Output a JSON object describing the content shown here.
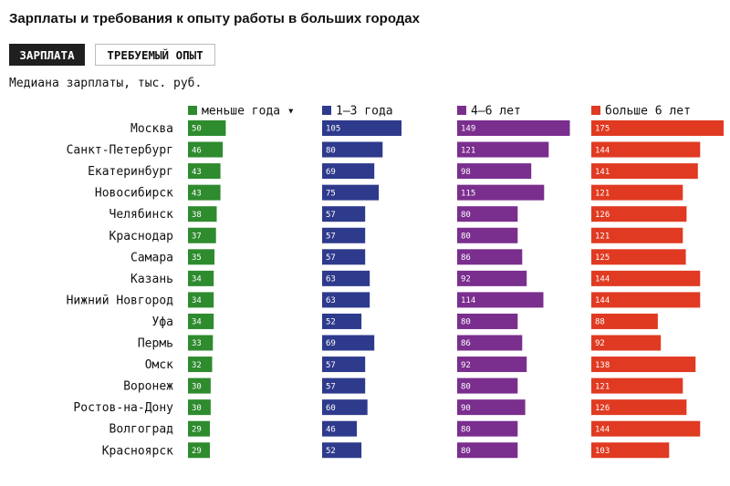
{
  "title": "Зарплаты и требования к опыту работы в больших городах",
  "tabs": [
    {
      "label": "ЗАРПЛАТА",
      "active": true
    },
    {
      "label": "ТРЕБУЕМЫЙ ОПЫТ",
      "active": false
    }
  ],
  "subtitle": "Медиана зарплаты, тыс. руб.",
  "chart_data": {
    "type": "bar",
    "orientation": "horizontal",
    "layout": "small-multiples",
    "categories": [
      "Москва",
      "Санкт-Петербург",
      "Екатеринбург",
      "Новосибирск",
      "Челябинск",
      "Краснодар",
      "Самара",
      "Казань",
      "Нижний Новгород",
      "Уфа",
      "Пермь",
      "Омск",
      "Воронеж",
      "Ростов-на-Дону",
      "Волгоград",
      "Красноярск"
    ],
    "sort_indicator": "▾",
    "series": [
      {
        "name": "меньше года",
        "color": "#2e8b2e",
        "values": [
          50,
          46,
          43,
          43,
          38,
          37,
          35,
          34,
          34,
          34,
          33,
          32,
          30,
          30,
          29,
          29
        ]
      },
      {
        "name": "1–3 года",
        "color": "#2e3a8c",
        "values": [
          105,
          80,
          69,
          75,
          57,
          57,
          57,
          63,
          63,
          52,
          69,
          57,
          57,
          60,
          46,
          52
        ]
      },
      {
        "name": "4–6 лет",
        "color": "#7a2e8e",
        "values": [
          149,
          121,
          98,
          115,
          80,
          80,
          86,
          92,
          114,
          80,
          86,
          92,
          80,
          90,
          80,
          80
        ]
      },
      {
        "name": "больше 6 лет",
        "color": "#e03a22",
        "values": [
          175,
          144,
          141,
          121,
          126,
          121,
          125,
          144,
          144,
          88,
          92,
          138,
          121,
          126,
          144,
          103
        ]
      }
    ],
    "xlim": [
      0,
      175
    ],
    "data_labels": true,
    "grid": false
  }
}
